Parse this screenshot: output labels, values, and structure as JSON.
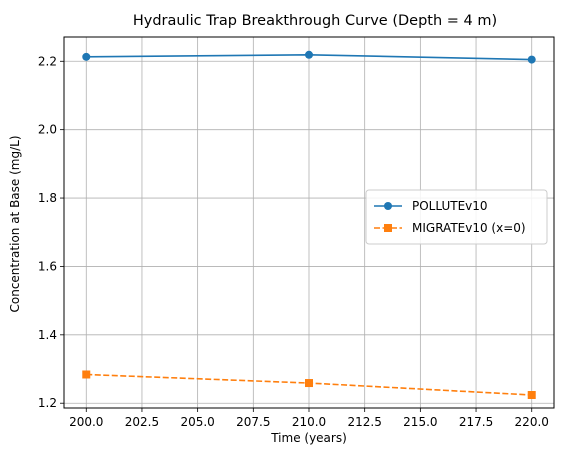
{
  "chart_data": {
    "type": "line",
    "title": "Hydraulic Trap Breakthrough Curve (Depth = 4 m)",
    "xlabel": "Time (years)",
    "ylabel": "Concentration at Base (mg/L)",
    "xlim": [
      199.0,
      221.0
    ],
    "ylim": [
      1.186,
      2.271
    ],
    "x_ticks": [
      "200.0",
      "202.5",
      "205.0",
      "207.5",
      "210.0",
      "212.5",
      "215.0",
      "217.5",
      "220.0"
    ],
    "y_ticks": [
      "1.2",
      "1.4",
      "1.6",
      "1.8",
      "2.0",
      "2.2"
    ],
    "grid": true,
    "legend_position": "center-right",
    "x": [
      200,
      210,
      220
    ],
    "series": [
      {
        "name": "POLLUTEv10",
        "values": [
          2.213,
          2.219,
          2.205
        ],
        "color": "#1f77b4",
        "marker": "circle",
        "line_style": "solid"
      },
      {
        "name": "MIGRATEv10 (x=0)",
        "values": [
          1.284,
          1.259,
          1.224
        ],
        "color": "#ff7f0e",
        "marker": "square",
        "line_style": "dashed"
      }
    ]
  }
}
